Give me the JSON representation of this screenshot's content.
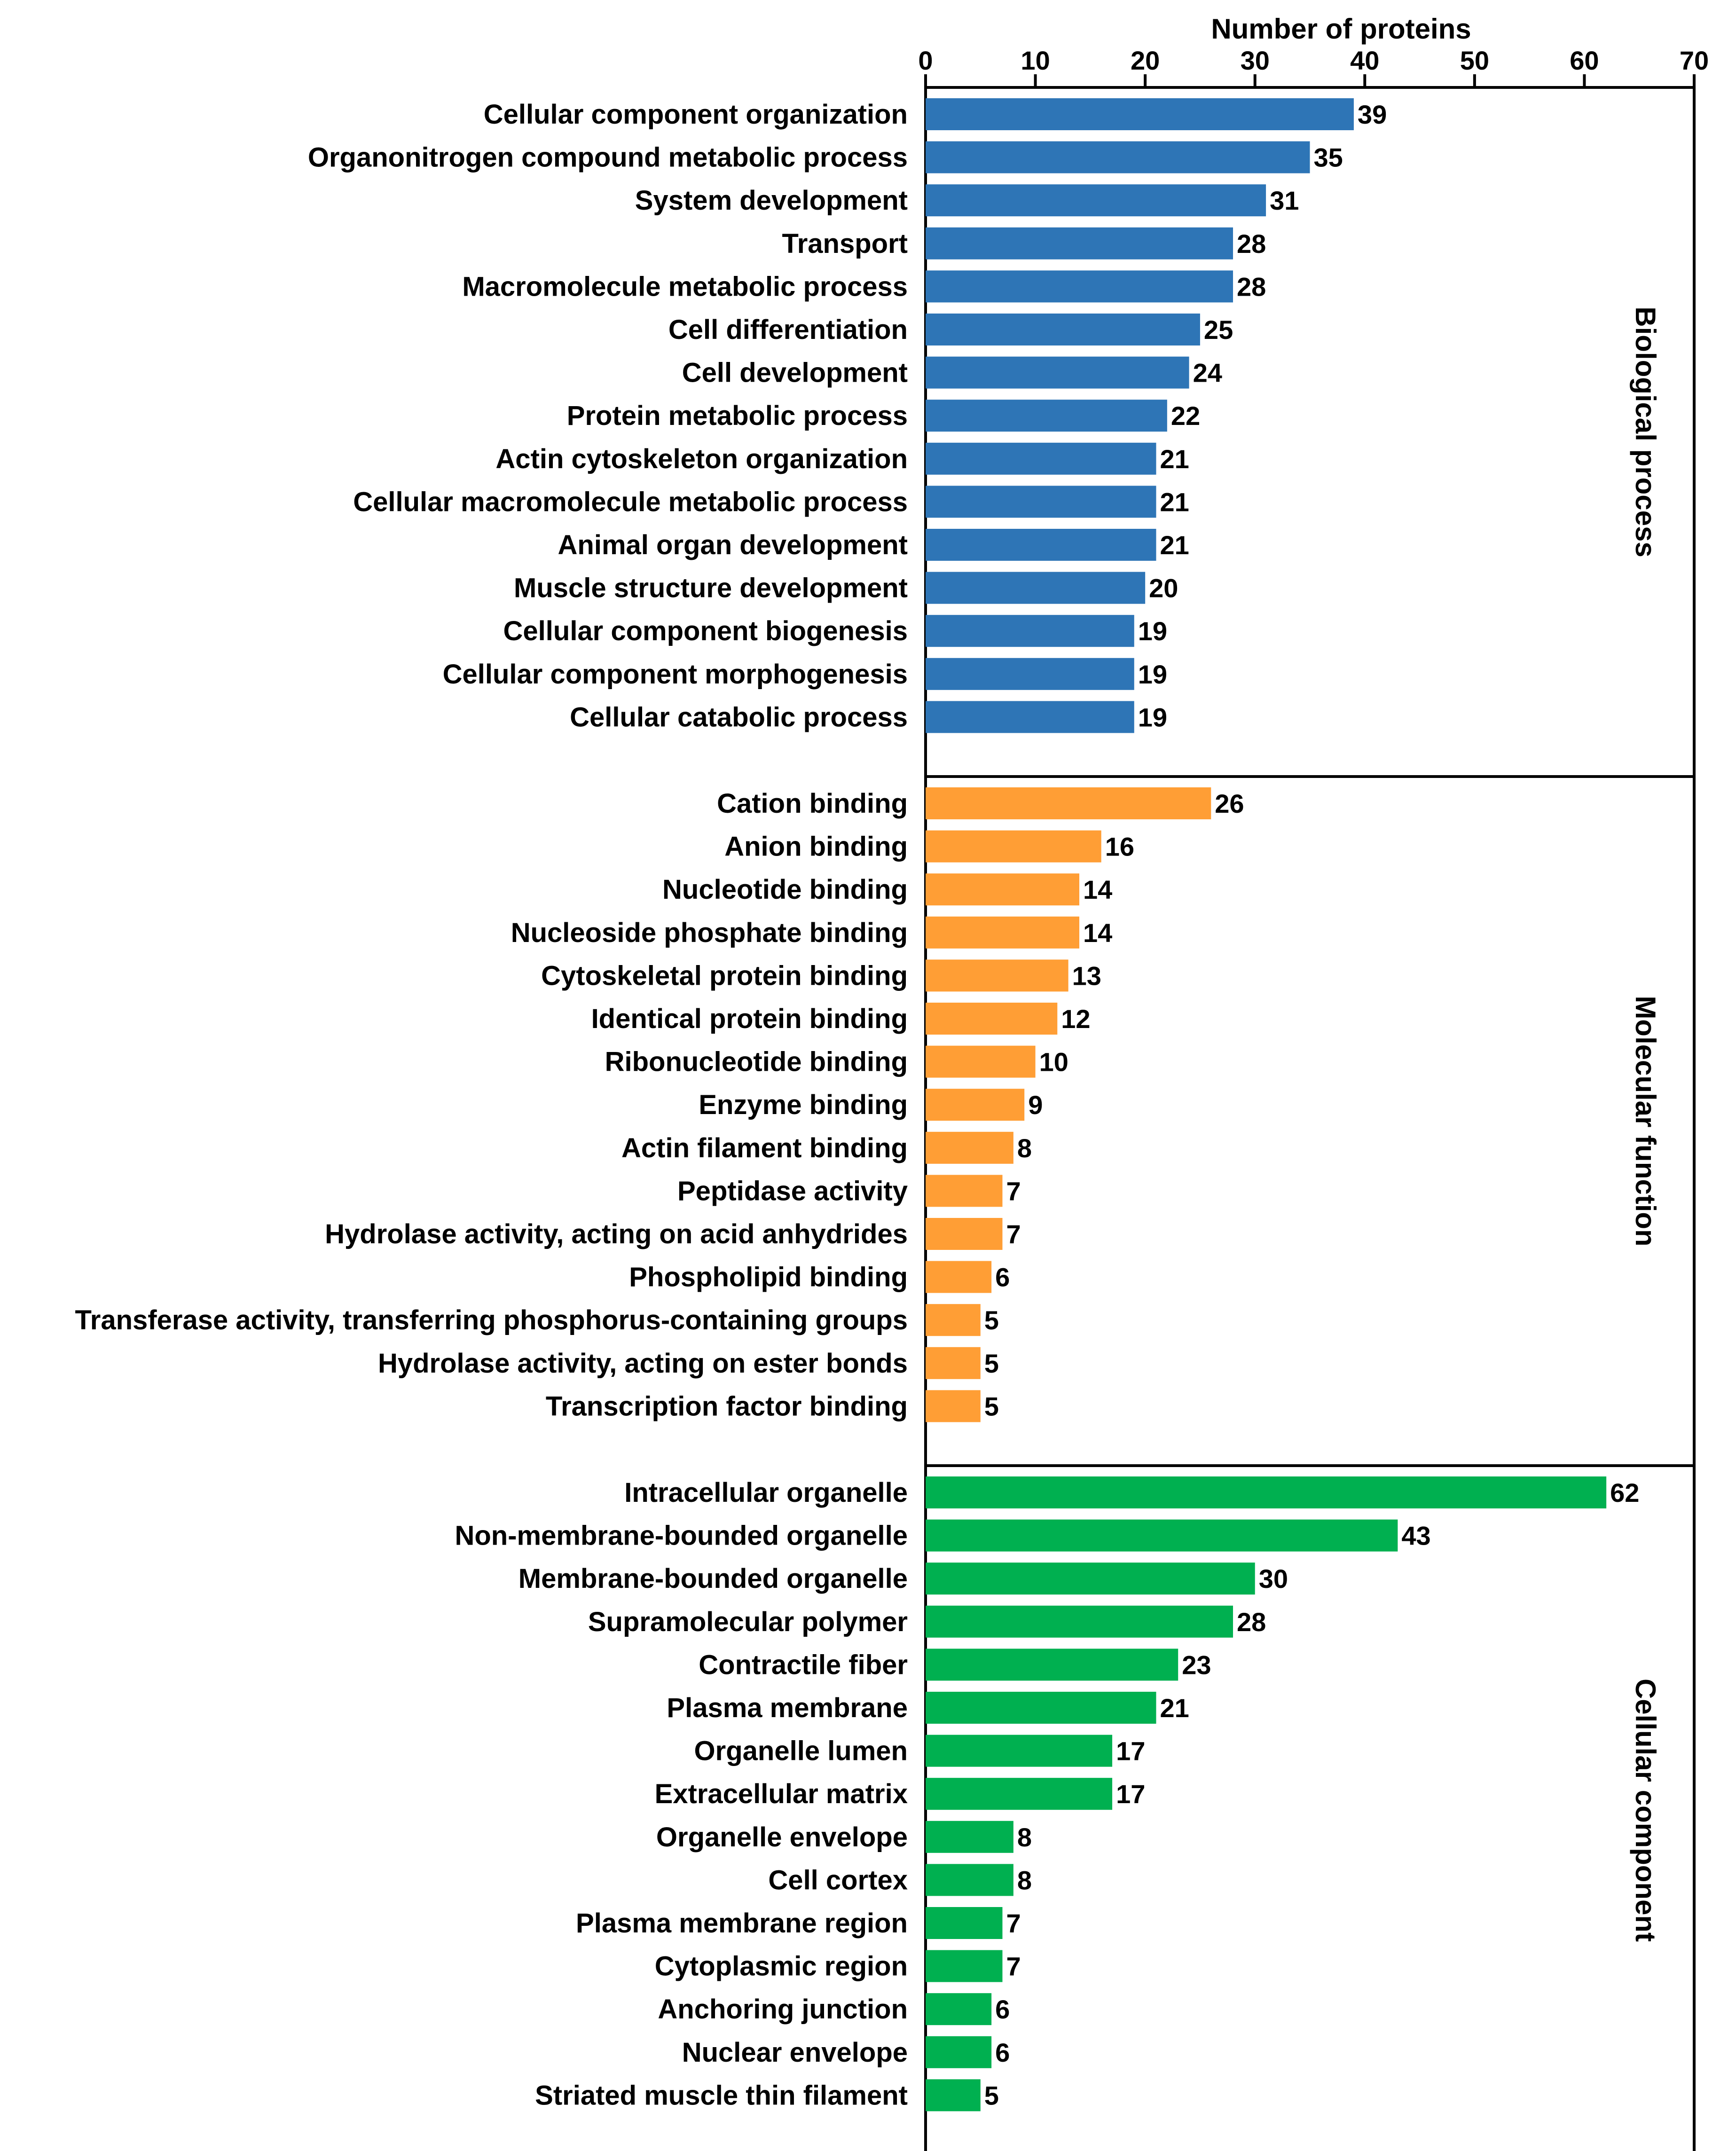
{
  "chart_data": {
    "type": "bar",
    "orientation": "horizontal",
    "title": "",
    "xlabel": "Number of proteins",
    "ylabel": "",
    "xlim": [
      0,
      70
    ],
    "x_ticks": [
      0,
      10,
      20,
      30,
      40,
      50,
      60,
      70
    ],
    "x_tick_labels": [
      "0",
      "10",
      "20",
      "30",
      "40",
      "50",
      "60",
      "70"
    ],
    "grid": false,
    "legend": "none",
    "panels": [
      {
        "name": "Biological process",
        "color": "#2E75B6",
        "categories": [
          "Cellular component organization",
          "Organonitrogen compound metabolic process",
          "System development",
          "Transport",
          "Macromolecule metabolic process",
          "Cell differentiation",
          "Cell development",
          "Protein metabolic process",
          "Actin cytoskeleton organization",
          "Cellular macromolecule metabolic process",
          "Animal organ development",
          "Muscle structure development",
          "Cellular component biogenesis",
          "Cellular component morphogenesis",
          "Cellular catabolic process"
        ],
        "values": [
          39,
          35,
          31,
          28,
          28,
          25,
          24,
          22,
          21,
          21,
          21,
          20,
          19,
          19,
          19
        ],
        "value_labels": [
          "39",
          "35",
          "31",
          "28",
          "28",
          "25",
          "24",
          "22",
          "21",
          "21",
          "21",
          "20",
          "19",
          "19",
          "19"
        ]
      },
      {
        "name": "Molecular function",
        "color": "#FF9E35",
        "categories": [
          "Cation binding",
          "Anion binding",
          "Nucleotide binding",
          "Nucleoside phosphate binding",
          "Cytoskeletal protein binding",
          "Identical protein binding",
          "Ribonucleotide binding",
          "Enzyme binding",
          "Actin filament binding",
          "Peptidase activity",
          "Hydrolase activity, acting on acid anhydrides",
          "Phospholipid binding",
          "Transferase activity, transferring phosphorus-containing groups",
          "Hydrolase activity, acting on ester bonds",
          "Transcription factor binding"
        ],
        "values": [
          26,
          16,
          14,
          14,
          13,
          12,
          10,
          9,
          8,
          7,
          7,
          6,
          5,
          5,
          5
        ],
        "value_labels": [
          "26",
          "16",
          "14",
          "14",
          "13",
          "12",
          "10",
          "9",
          "8",
          "7",
          "7",
          "6",
          "5",
          "5",
          "5"
        ]
      },
      {
        "name": "Cellular component",
        "color": "#00B050",
        "categories": [
          "Intracellular organelle",
          "Non-membrane-bounded organelle",
          "Membrane-bounded organelle",
          "Supramolecular polymer",
          "Contractile fiber",
          "Plasma membrane",
          "Organelle lumen",
          "Extracellular matrix",
          "Organelle envelope",
          "Cell cortex",
          "Plasma membrane region",
          "Cytoplasmic region",
          "Anchoring junction",
          "Nuclear envelope",
          "Striated muscle thin filament"
        ],
        "values": [
          62,
          43,
          30,
          28,
          23,
          21,
          17,
          17,
          8,
          8,
          7,
          7,
          6,
          6,
          5
        ],
        "value_labels": [
          "62",
          "43",
          "30",
          "28",
          "23",
          "21",
          "17",
          "17",
          "8",
          "8",
          "7",
          "7",
          "6",
          "6",
          "5"
        ]
      }
    ]
  },
  "colors": {
    "biological_process": "#2E75B6",
    "molecular_function": "#FF9E35",
    "cellular_component": "#00B050",
    "frame": "#000000",
    "text": "#000000",
    "background": "#FFFFFF"
  }
}
